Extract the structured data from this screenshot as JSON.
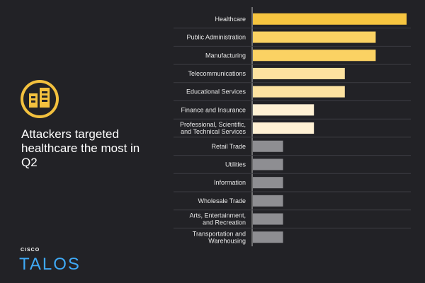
{
  "chart_data": {
    "type": "bar",
    "orientation": "horizontal",
    "title": "Attackers targeted healthcare the most in Q2",
    "categories": [
      "Healthcare",
      "Public Administration",
      "Manufacturing",
      "Telecommunications",
      "Educational Services",
      "Finance and Insurance",
      "Professional, Scientific,\nand Technical Services",
      "Retail Trade",
      "Utilities",
      "Information",
      "Wholesale Trade",
      "Arts, Entertainment,\nand Recreation",
      "Transportation and\nWarehousing"
    ],
    "values": [
      5,
      4,
      4,
      3,
      3,
      2,
      2,
      1,
      1,
      1,
      1,
      1,
      1
    ],
    "colors": [
      "#f7c540",
      "#fbd263",
      "#fbd263",
      "#fde2a0",
      "#fde2a0",
      "#fff1d4",
      "#fff1d4",
      "#8e8e92",
      "#8e8e92",
      "#8e8e92",
      "#8e8e92",
      "#8e8e92",
      "#8e8e92"
    ]
  },
  "brand": {
    "company": "CISCO",
    "product": "TALOS"
  }
}
